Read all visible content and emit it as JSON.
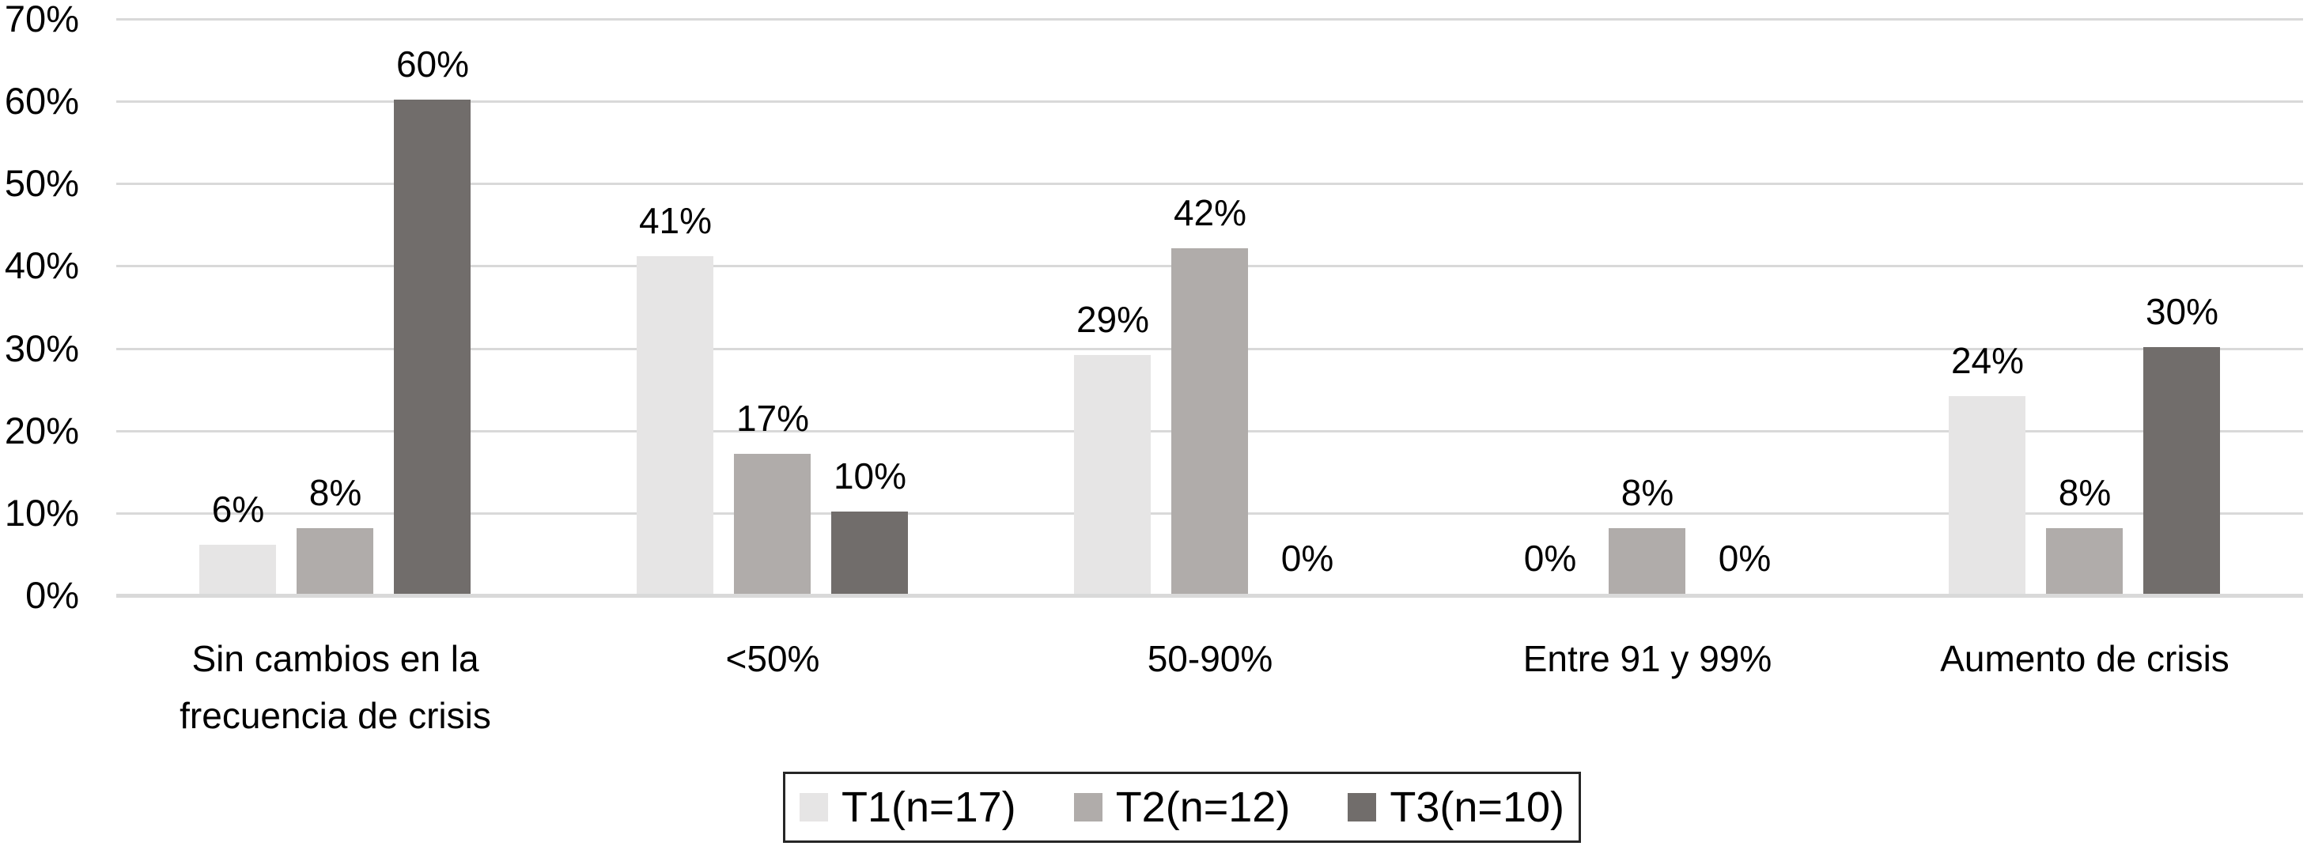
{
  "chart_data": {
    "type": "bar",
    "title": "",
    "xlabel": "",
    "ylabel": "",
    "categories": [
      "Sin cambios en la\nfrecuencia de crisis",
      "<50%",
      "50-90%",
      "Entre 91 y 99%",
      "Aumento de crisis"
    ],
    "series": [
      {
        "name": "T1(n=17)",
        "color": "#e6e5e5",
        "values": [
          6,
          41,
          29,
          0,
          24
        ]
      },
      {
        "name": "T2(n=12)",
        "color": "#b0acaa",
        "values": [
          8,
          17,
          42,
          8,
          8
        ]
      },
      {
        "name": "T3(n=10)",
        "color": "#716d6b",
        "values": [
          60,
          10,
          0,
          0,
          30
        ]
      }
    ],
    "data_labels": [
      "6%",
      "8%",
      "60%",
      "41%",
      "17%",
      "10%",
      "29%",
      "42%",
      "0%",
      "0%",
      "8%",
      "0%",
      "24%",
      "8%",
      "30%"
    ],
    "value_suffix": "%",
    "y_axis": {
      "min": 0,
      "max": 70,
      "step": 10,
      "ticks": [
        "0%",
        "10%",
        "20%",
        "30%",
        "40%",
        "50%",
        "60%",
        "70%"
      ]
    },
    "grid": true,
    "legend_position": "bottom-center",
    "colors": {
      "background": "#ffffff",
      "gridline": "#d9d9d9",
      "axis_line": "#d9d9d9",
      "text": "#000000",
      "legend_border": "#262626"
    }
  }
}
